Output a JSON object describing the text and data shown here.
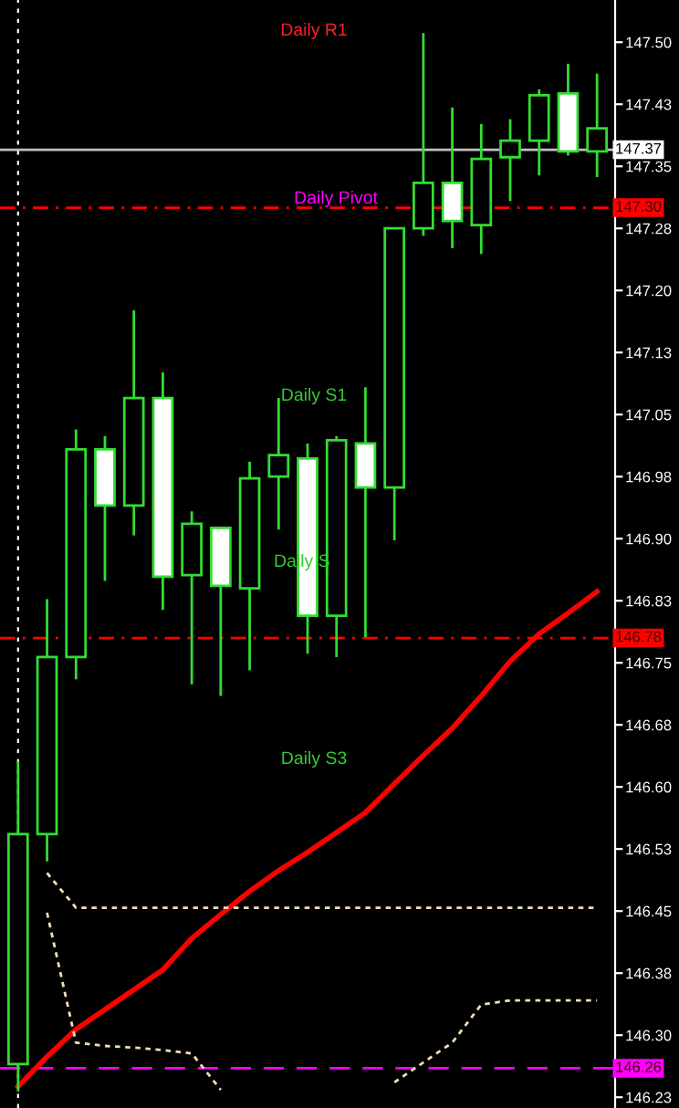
{
  "chart_data": {
    "type": "candlestick",
    "categories": [
      null,
      null,
      null,
      null,
      null,
      null,
      null,
      null,
      null,
      null,
      null,
      null,
      null,
      null,
      null,
      null,
      null,
      null,
      null,
      null,
      null
    ],
    "series": [
      {
        "color": "#33dd33",
        "ohlc": [
          [
            146.265,
            146.631,
            146.232,
            146.543
          ],
          [
            146.543,
            146.827,
            146.51,
            146.757
          ],
          [
            146.757,
            147.032,
            146.73,
            147.008
          ],
          [
            147.008,
            147.024,
            146.849,
            146.94
          ],
          [
            146.94,
            147.176,
            146.904,
            147.07
          ],
          [
            147.07,
            147.101,
            146.814,
            146.854
          ],
          [
            146.856,
            146.933,
            146.724,
            146.918
          ],
          [
            146.913,
            146.913,
            146.71,
            146.843
          ],
          [
            146.84,
            146.993,
            146.741,
            146.973
          ],
          [
            146.975,
            147.07,
            146.911,
            147.001
          ],
          [
            146.997,
            147.015,
            146.761,
            146.807
          ],
          [
            146.807,
            147.024,
            146.757,
            147.019
          ],
          [
            147.015,
            147.083,
            146.781,
            146.962
          ],
          [
            146.962,
            147.275,
            146.898,
            147.275
          ],
          [
            147.275,
            147.511,
            147.266,
            147.33
          ],
          [
            147.33,
            147.421,
            147.251,
            147.284
          ],
          [
            147.279,
            147.401,
            147.244,
            147.359
          ],
          [
            147.361,
            147.407,
            147.308,
            147.381
          ],
          [
            147.381,
            147.443,
            147.339,
            147.436
          ],
          [
            147.438,
            147.474,
            147.363,
            147.368
          ],
          [
            147.368,
            147.462,
            147.337,
            147.396
          ]
        ]
      },
      {
        "type": "line",
        "color": "#ff0000",
        "line_style": "solid",
        "values": [
          146.238,
          146.274,
          146.307,
          146.331,
          146.355,
          146.379,
          146.417,
          146.446,
          146.474,
          146.499,
          146.521,
          146.545,
          146.569,
          146.604,
          146.638,
          146.671,
          146.71,
          146.752,
          146.785,
          146.81,
          146.836
        ]
      },
      {
        "type": "line",
        "color": "#f5deb3",
        "line_style": "dotted",
        "values": [
          null,
          146.496,
          146.454,
          146.454,
          146.454,
          146.454,
          146.454,
          146.454,
          146.454,
          146.454,
          146.454,
          146.454,
          146.454,
          146.454,
          146.454,
          146.454,
          146.454,
          146.454,
          146.454,
          146.454,
          146.454
        ]
      },
      {
        "type": "line",
        "color": "#f5deb3",
        "line_style": "dotted",
        "values": [
          null,
          146.448,
          146.291,
          146.287,
          146.285,
          146.282,
          146.278,
          146.234,
          null,
          null,
          null,
          null,
          null,
          146.243,
          146.267,
          146.291,
          146.337,
          146.342,
          146.342,
          146.342,
          146.342
        ]
      }
    ],
    "ylim": [
      146.212,
      147.551
    ],
    "yticks": [
      {
        "value": 147.5,
        "label": "147.50"
      },
      {
        "value": 147.425,
        "label": "147.43"
      },
      {
        "value": 147.35,
        "label": "147.35"
      },
      {
        "value": 147.275,
        "label": "147.28"
      },
      {
        "value": 147.2,
        "label": "147.20"
      },
      {
        "value": 147.125,
        "label": "147.13"
      },
      {
        "value": 147.05,
        "label": "147.05"
      },
      {
        "value": 146.975,
        "label": "146.98"
      },
      {
        "value": 146.9,
        "label": "146.90"
      },
      {
        "value": 146.825,
        "label": "146.83"
      },
      {
        "value": 146.75,
        "label": "146.75"
      },
      {
        "value": 146.675,
        "label": "146.68"
      },
      {
        "value": 146.6,
        "label": "146.60"
      },
      {
        "value": 146.525,
        "label": "146.53"
      },
      {
        "value": 146.45,
        "label": "146.45"
      },
      {
        "value": 146.375,
        "label": "146.38"
      },
      {
        "value": 146.3,
        "label": "146.30"
      },
      {
        "value": 146.225,
        "label": "146.23"
      }
    ],
    "ref_lines": [
      {
        "axis": "y",
        "value": 147.37,
        "label": "147.37",
        "color": "#c0c0c0",
        "line_style": "solid"
      },
      {
        "axis": "y",
        "value": 147.3,
        "label": "147.30",
        "color": "#ff0000",
        "line_style": "dashdot"
      },
      {
        "axis": "y",
        "value": 146.78,
        "label": "146.78",
        "color": "#ff0000",
        "line_style": "dashdot"
      },
      {
        "axis": "y",
        "value": 146.26,
        "label": "146.26",
        "color": "#ff00ff",
        "line_style": "dashed"
      }
    ],
    "annotations": [
      "Daily R1",
      "Daily Pivot",
      "Daily S1",
      "Daily S",
      "Daily S3"
    ],
    "grid": false,
    "legend": false
  }
}
